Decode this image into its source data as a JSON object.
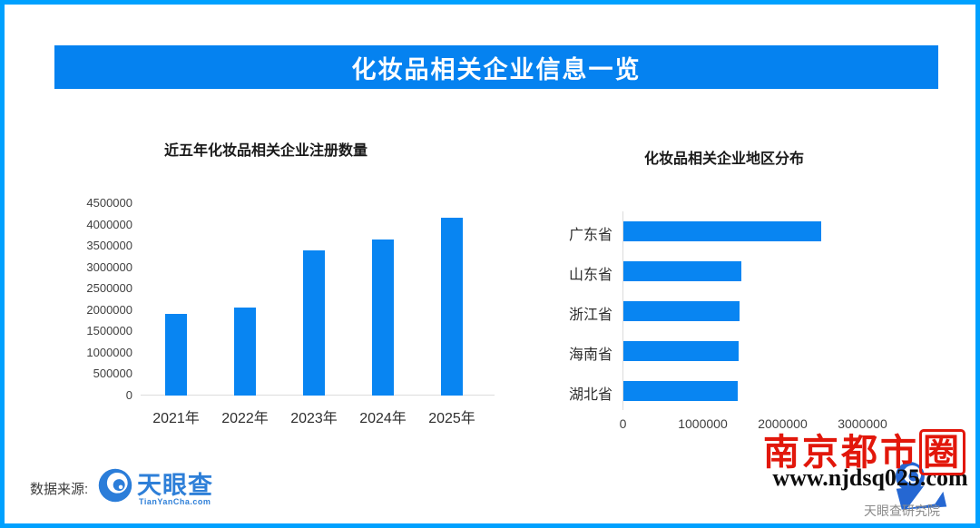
{
  "header": {
    "title": "化妆品相关企业信息一览"
  },
  "colors": {
    "page_border": "#00a1ff",
    "header_bg": "#0582f0",
    "bar_fill": "#0885f2",
    "axis_line": "#dcdcdc",
    "seal_red": "#e2170b",
    "tyc_blue": "#2e7fd8",
    "watermark_blue": "#1a5fd0"
  },
  "chart_data": [
    {
      "type": "bar",
      "title": "近五年化妆品相关企业注册数量",
      "categories": [
        "2021年",
        "2022年",
        "2023年",
        "2024年",
        "2025年"
      ],
      "values": [
        1900000,
        2050000,
        3390000,
        3650000,
        4150000
      ],
      "ylim": [
        0,
        4500000
      ],
      "yticks": [
        0,
        500000,
        1000000,
        1500000,
        2000000,
        2500000,
        3000000,
        3500000,
        4000000,
        4500000
      ],
      "grid": false,
      "legend": "none",
      "xlabel": "",
      "ylabel": ""
    },
    {
      "type": "bar-horizontal",
      "title": "化妆品相关企业地区分布",
      "categories": [
        "广东省",
        "山东省",
        "浙江省",
        "海南省",
        "湖北省"
      ],
      "values": [
        2480000,
        1480000,
        1450000,
        1440000,
        1430000
      ],
      "xlim": [
        0,
        3000000
      ],
      "xticks": [
        0,
        1000000,
        2000000,
        3000000
      ],
      "grid": false,
      "legend": "none",
      "xlabel": "",
      "ylabel": ""
    }
  ],
  "footer": {
    "source_label": "数据来源:",
    "logo_name": "天眼查",
    "logo_sub": "TianYanCha.com"
  },
  "stamp": {
    "seal": "南京都市圈",
    "url": "www.njdsq025.com",
    "institute": "天眼查研究院"
  }
}
